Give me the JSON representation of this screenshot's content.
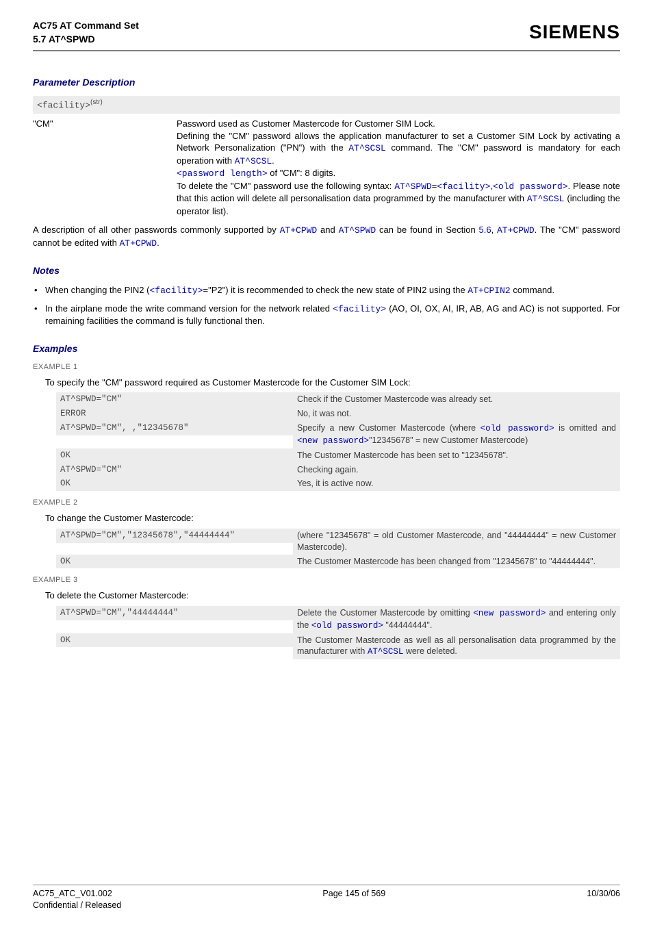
{
  "header": {
    "title_line1": "AC75 AT Command Set",
    "title_line2": "5.7 AT^SPWD",
    "logo_text": "SIEMENS"
  },
  "section_param": {
    "heading": "Parameter Description",
    "facility_code": "<facility>",
    "facility_sup": "(str)",
    "row_key": "\"CM\"",
    "desc": {
      "p1": "Password used as Customer Mastercode for Customer SIM Lock.",
      "p2a": "Defining the \"CM\" password allows the application manufacturer to set a Customer SIM Lock by activating a Network Personalization (\"PN\") with the ",
      "p2_cmd1": "AT^SCSL",
      "p2b": " command. The \"CM\" password is mandatory for each operation with ",
      "p2_cmd2": "AT^SCSL",
      "p2c": ".",
      "p3a": "<password length>",
      "p3b": " of \"CM\": 8 digits.",
      "p4a": "To delete the \"CM\" password use the following syntax: ",
      "p4_cmd": "AT^SPWD",
      "p4b": "=",
      "p4_fac": "<facility>",
      "p4c": ",",
      "p4_old": "<old password>",
      "p4d": ". Please note that this action will delete all personalisation data programmed by the manufacturer with ",
      "p4_cmd2": "AT^SCSL",
      "p4e": " (including the operator list)."
    },
    "trailer_a": "A description of all other passwords commonly supported by ",
    "trailer_cpwd": "AT+CPWD",
    "trailer_b": " and ",
    "trailer_spwd": "AT^SPWD",
    "trailer_c": " can be found in Section ",
    "trailer_sec": "5.6",
    "trailer_d": ", ",
    "trailer_cpwd2": "AT+CPWD",
    "trailer_e": ". The \"CM\" password cannot be edited with ",
    "trailer_cpwd3": "AT+CPWD",
    "trailer_f": "."
  },
  "notes": {
    "heading": "Notes",
    "n1a": "When changing the PIN2 (",
    "n1_fac": "<facility>",
    "n1b": "=\"P2\") it is recommended to check the new state of PIN2 using the ",
    "n1_cmd": "AT+CPIN2",
    "n1c": " command.",
    "n2a": "In the airplane mode the write command version for the network related ",
    "n2_fac": "<facility>",
    "n2b": " (AO, OI, OX, AI, IR, AB, AG and AC) is not supported. For remaining facilities the command is fully functional then."
  },
  "examples": {
    "heading": "Examples",
    "ex1": {
      "label": "EXAMPLE 1",
      "intro": "To specify the \"CM\" password required as Customer Mastercode for the Customer SIM Lock:",
      "rows": [
        {
          "left": "AT^SPWD=\"CM\"",
          "right": "Check if the Customer Mastercode was already set."
        },
        {
          "left": "ERROR",
          "right": "No, it was not."
        },
        {
          "left": "AT^SPWD=\"CM\", ,\"12345678\"",
          "right_html": true,
          "r_a": "Specify a new Customer Mastercode (where ",
          "r_old": "<old password>",
          "r_b": " is omitted and ",
          "r_new": "<new password>",
          "r_c": "\"12345678\" = new Customer Mastercode)"
        },
        {
          "left": "OK",
          "right": "The Customer Mastercode has been set to \"12345678\"."
        },
        {
          "left": "AT^SPWD=\"CM\"",
          "right": "Checking again."
        },
        {
          "left": "OK",
          "right": "Yes, it is active now."
        }
      ]
    },
    "ex2": {
      "label": "EXAMPLE 2",
      "intro": "To change the Customer Mastercode:",
      "rows": [
        {
          "left": "AT^SPWD=\"CM\",\"12345678\",\"44444444\"",
          "right": "(where \"12345678\" = old Customer Mastercode, and \"44444444\" = new Customer Mastercode)."
        },
        {
          "left": "OK",
          "right": "The Customer Mastercode has been changed from \"12345678\" to \"44444444\"."
        }
      ]
    },
    "ex3": {
      "label": "EXAMPLE 3",
      "intro": "To delete the Customer Mastercode:",
      "rows": [
        {
          "left": "AT^SPWD=\"CM\",\"44444444\"",
          "right_html": true,
          "r_a": "Delete the Customer Mastercode by omitting ",
          "r_new": "<new password>",
          "r_b": " and entering only the ",
          "r_old": "<old password>",
          "r_c": " \"44444444\"."
        },
        {
          "left": "OK",
          "right_html": true,
          "r_a": "The Customer Mastercode as well as all personalisation data programmed by the manufacturer with ",
          "r_cmd": "AT^SCSL",
          "r_b": " were deleted."
        }
      ]
    }
  },
  "footer": {
    "left_line1": "AC75_ATC_V01.002",
    "left_line2": "Confidential / Released",
    "center": "Page 145 of 569",
    "right": "10/30/06"
  },
  "colors": {
    "rule": "#808080",
    "navy": "#000080",
    "link": "#0000c0",
    "code_bg": "#ececec",
    "code_fg": "#4a4a4a"
  }
}
